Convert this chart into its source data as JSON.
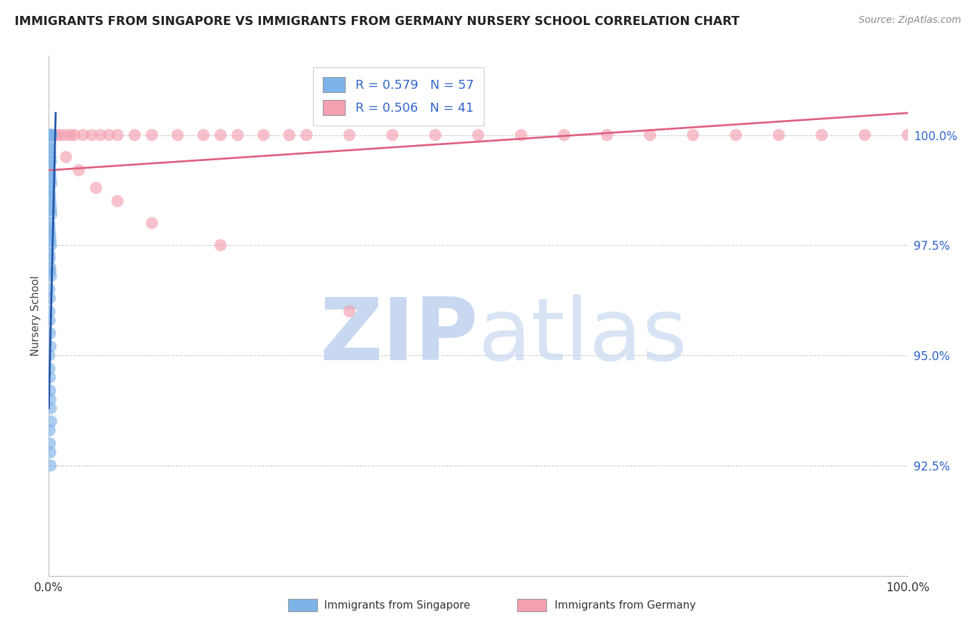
{
  "title": "IMMIGRANTS FROM SINGAPORE VS IMMIGRANTS FROM GERMANY NURSERY SCHOOL CORRELATION CHART",
  "source": "Source: ZipAtlas.com",
  "ylabel": "Nursery School",
  "xlim": [
    0.0,
    100.0
  ],
  "ylim": [
    90.0,
    101.8
  ],
  "yticks": [
    92.5,
    95.0,
    97.5,
    100.0
  ],
  "ytick_labels": [
    "92.5%",
    "95.0%",
    "97.5%",
    "100.0%"
  ],
  "singapore_R": 0.579,
  "singapore_N": 57,
  "germany_R": 0.506,
  "germany_N": 41,
  "singapore_color": "#7EB3E8",
  "germany_color": "#F4A0B0",
  "singapore_line_color": "#2255AA",
  "germany_line_color": "#E06080",
  "watermark_zip_color": "#C8D8F0",
  "watermark_atlas_color": "#C8D8F0",
  "legend_label_singapore": "Immigrants from Singapore",
  "legend_label_germany": "Immigrants from Germany",
  "sg_x": [
    0.05,
    0.08,
    0.12,
    0.15,
    0.18,
    0.2,
    0.22,
    0.25,
    0.28,
    0.3,
    0.05,
    0.1,
    0.15,
    0.2,
    0.25,
    0.08,
    0.12,
    0.18,
    0.22,
    0.28,
    0.06,
    0.1,
    0.14,
    0.18,
    0.22,
    0.26,
    0.3,
    0.05,
    0.09,
    0.13,
    0.17,
    0.21,
    0.25,
    0.06,
    0.11,
    0.16,
    0.2,
    0.24,
    0.07,
    0.12,
    0.08,
    0.1,
    0.15,
    0.2,
    0.05,
    0.07,
    0.11,
    0.14,
    0.19,
    0.23,
    0.27,
    0.09,
    0.13,
    0.17,
    0.21,
    0.06,
    0.1
  ],
  "sg_y": [
    100.0,
    100.0,
    100.0,
    100.0,
    100.0,
    100.0,
    100.0,
    100.0,
    100.0,
    100.0,
    99.8,
    99.7,
    99.6,
    99.5,
    99.4,
    99.3,
    99.2,
    99.1,
    99.0,
    98.9,
    98.8,
    98.7,
    98.6,
    98.5,
    98.4,
    98.3,
    98.2,
    98.0,
    97.9,
    97.8,
    97.7,
    97.6,
    97.5,
    97.3,
    97.2,
    97.0,
    96.9,
    96.8,
    96.5,
    96.3,
    96.0,
    95.8,
    95.5,
    95.2,
    95.0,
    94.7,
    94.5,
    94.2,
    94.0,
    93.8,
    93.5,
    93.3,
    93.0,
    92.8,
    92.5,
    100.0,
    100.0
  ],
  "de_x": [
    0.3,
    0.8,
    1.2,
    1.8,
    2.5,
    3.0,
    4.0,
    5.0,
    6.0,
    7.0,
    8.0,
    10.0,
    12.0,
    15.0,
    18.0,
    20.0,
    22.0,
    25.0,
    28.0,
    30.0,
    35.0,
    40.0,
    45.0,
    50.0,
    55.0,
    60.0,
    65.0,
    70.0,
    75.0,
    80.0,
    85.0,
    90.0,
    95.0,
    100.0,
    2.0,
    3.5,
    5.5,
    8.0,
    12.0,
    20.0,
    35.0
  ],
  "de_y": [
    100.0,
    100.0,
    100.0,
    100.0,
    100.0,
    100.0,
    100.0,
    100.0,
    100.0,
    100.0,
    100.0,
    100.0,
    100.0,
    100.0,
    100.0,
    100.0,
    100.0,
    100.0,
    100.0,
    100.0,
    100.0,
    100.0,
    100.0,
    100.0,
    100.0,
    100.0,
    100.0,
    100.0,
    100.0,
    100.0,
    100.0,
    100.0,
    100.0,
    100.0,
    99.5,
    99.2,
    98.8,
    98.5,
    98.0,
    97.5,
    96.0
  ],
  "sg_line_x0": 0.0,
  "sg_line_y0": 93.8,
  "sg_line_x1": 0.8,
  "sg_line_y1": 100.5,
  "de_line_x0": 0.0,
  "de_line_y0": 99.2,
  "de_line_x1": 100.0,
  "de_line_y1": 100.5
}
